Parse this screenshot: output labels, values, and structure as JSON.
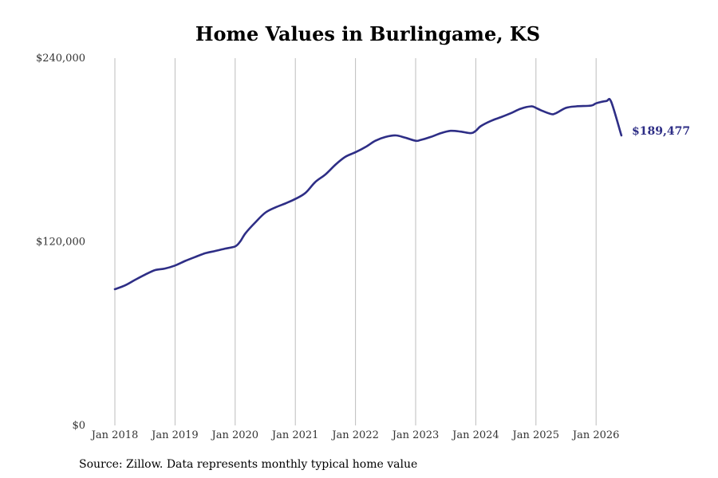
{
  "chart_data": {
    "type": "line",
    "title": "Home Values in Burlingame, KS",
    "xlabel": "",
    "ylabel": "",
    "ylim": [
      0,
      240000
    ],
    "y_ticks": [
      "$240,000",
      "$120,000",
      "$0"
    ],
    "y_tick_values": [
      240000,
      120000,
      0
    ],
    "x_ticks": [
      "Jan 2018",
      "Jan 2019",
      "Jan 2020",
      "Jan 2021",
      "Jan 2022",
      "Jan 2023",
      "Jan 2024",
      "Jan 2025",
      "Jan 2026"
    ],
    "x_tick_values": [
      2018,
      2019,
      2020,
      2021,
      2022,
      2023,
      2024,
      2025,
      2026
    ],
    "xlim": [
      2018,
      2026.42
    ],
    "grid": "vertical",
    "line_color": "#2e2e86",
    "end_label": "$189,477",
    "series": [
      {
        "x": [
          2018.0,
          2018.17,
          2018.33,
          2018.5,
          2018.67,
          2018.83,
          2019.0,
          2019.17,
          2019.33,
          2019.5,
          2019.67,
          2019.83,
          2020.0,
          2020.08,
          2020.17,
          2020.33,
          2020.5,
          2020.67,
          2020.83,
          2021.0,
          2021.17,
          2021.33,
          2021.5,
          2021.67,
          2021.83,
          2022.0,
          2022.17,
          2022.33,
          2022.5,
          2022.67,
          2022.83,
          2023.0,
          2023.08,
          2023.25,
          2023.42,
          2023.58,
          2023.75,
          2023.92,
          2024.0,
          2024.08,
          2024.25,
          2024.42,
          2024.58,
          2024.75,
          2024.92,
          2025.0,
          2025.08,
          2025.25,
          2025.33,
          2025.5,
          2025.67,
          2025.92,
          2026.0,
          2026.17,
          2026.25,
          2026.42
        ],
        "values": [
          89000,
          91500,
          95000,
          98500,
          101500,
          102500,
          104500,
          107500,
          110000,
          112500,
          114000,
          115500,
          117000,
          120000,
          125500,
          132500,
          139000,
          142500,
          145000,
          148000,
          152000,
          159000,
          164000,
          170500,
          175500,
          178500,
          182000,
          186000,
          188500,
          189500,
          188000,
          186000,
          186500,
          188500,
          191000,
          192500,
          192000,
          191000,
          192500,
          195500,
          199000,
          201500,
          204000,
          207000,
          208500,
          207500,
          206000,
          203500,
          204000,
          207500,
          208500,
          209000,
          210500,
          212000,
          211500,
          189477
        ]
      }
    ]
  },
  "footer": {
    "source": "Source: Zillow. Data represents monthly typical home value"
  }
}
